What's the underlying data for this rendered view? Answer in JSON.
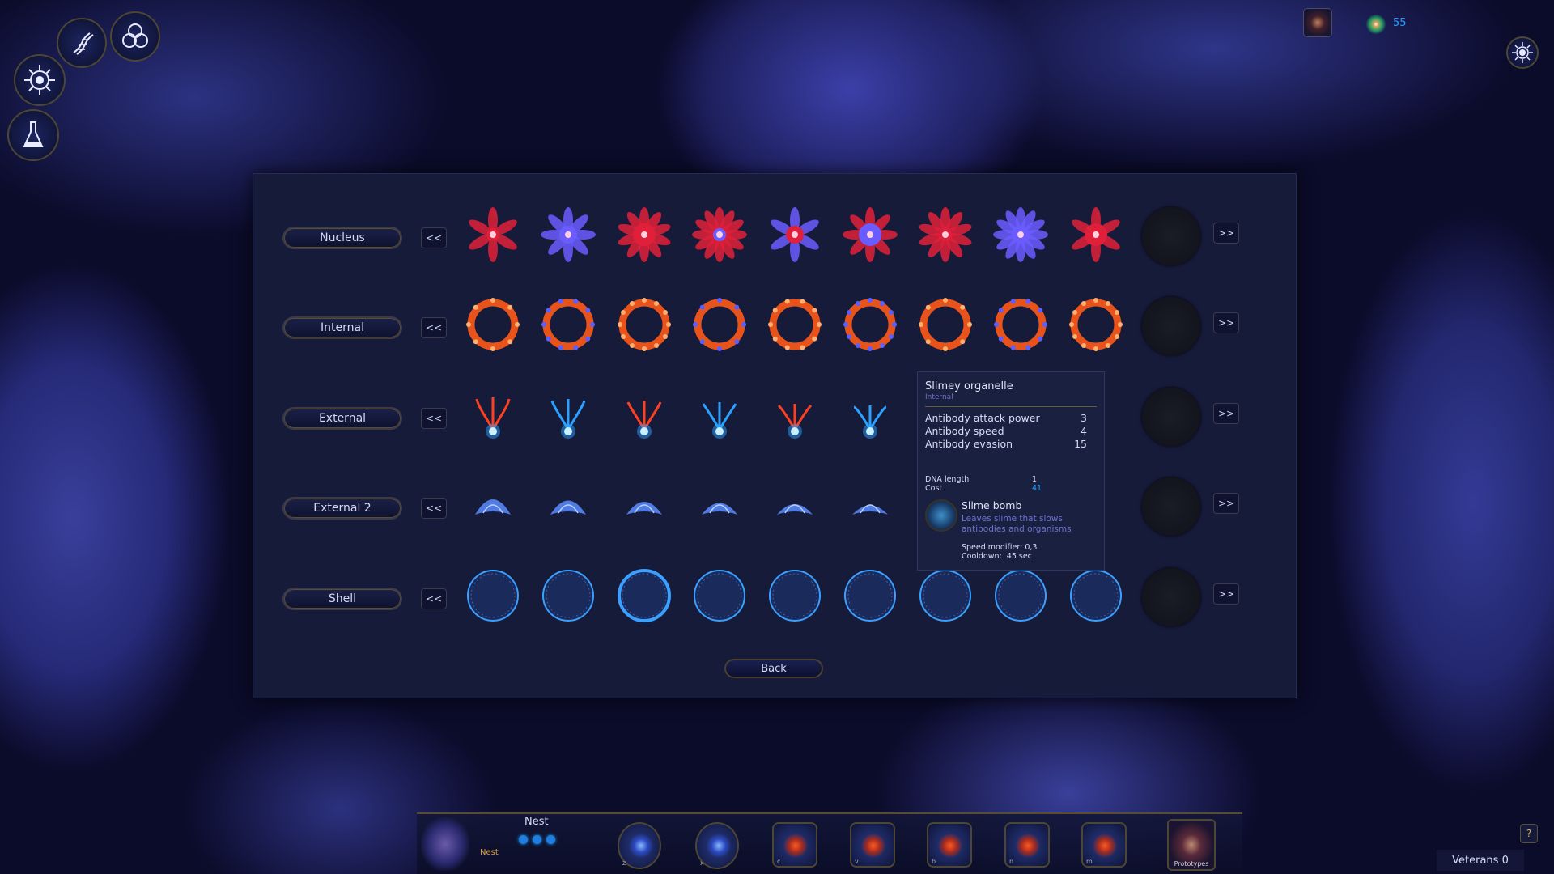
{
  "top_left_icons": [
    "dna-icon",
    "triple-circle-icon",
    "cell-gear-icon",
    "flask-icon"
  ],
  "resources": {
    "icon": "dna-orb-icon",
    "value": "55",
    "color": "#1fa0ff"
  },
  "settings_icon": "settings-icon",
  "rows": [
    {
      "label": "Nucleus",
      "prev": "<<",
      "next": ">>",
      "color": "#e0203a",
      "accent": "#6a5cff",
      "icons": [
        "nucleus-1",
        "nucleus-2",
        "nucleus-3",
        "nucleus-4",
        "nucleus-5",
        "nucleus-6",
        "nucleus-7",
        "nucleus-8",
        "nucleus-9"
      ]
    },
    {
      "label": "Internal",
      "prev": "<<",
      "next": ">>",
      "color": "#ff5a18",
      "accent": "#5a60ff",
      "icons": [
        "internal-1",
        "internal-2",
        "internal-3",
        "internal-4",
        "internal-5",
        "internal-6",
        "internal-7",
        "internal-8",
        "internal-9"
      ]
    },
    {
      "label": "External",
      "prev": "<<",
      "next": ">>",
      "color": "#2aa0ff",
      "accent": "#ff4020",
      "icons": [
        "external-1",
        "external-2",
        "external-3",
        "external-4",
        "external-5",
        "external-6"
      ]
    },
    {
      "label": "External 2",
      "prev": "<<",
      "next": ">>",
      "color": "#5a8cff",
      "accent": "#bcd0ff",
      "icons": [
        "external2-1",
        "external2-2",
        "external2-3",
        "external2-4",
        "external2-5",
        "external2-6"
      ]
    },
    {
      "label": "Shell",
      "prev": "<<",
      "next": ">>",
      "color": "#3aa0ff",
      "accent": "#20305a",
      "icons": [
        "shell-1",
        "shell-2",
        "shell-3",
        "shell-4",
        "shell-5",
        "shell-6",
        "shell-7",
        "shell-8",
        "shell-9"
      ]
    }
  ],
  "back_label": "Back",
  "tooltip": {
    "title": "Slimey organelle",
    "category": "Internal",
    "stats": [
      {
        "label": "Antibody attack power",
        "value": "3"
      },
      {
        "label": "Antibody speed",
        "value": "4"
      },
      {
        "label": "Antibody evasion",
        "value": "15"
      }
    ],
    "dna_length_label": "DNA length",
    "dna_length": "1",
    "cost_label": "Cost",
    "cost": "41",
    "cost_color": "#1fa0ff",
    "ability": {
      "name": "Slime bomb",
      "description": "Leaves slime that slows antibodies and organisms",
      "speed_label": "Speed modifier:",
      "speed": "0,3",
      "cooldown_label": "Cooldown:",
      "cooldown": "45 sec"
    }
  },
  "bottom": {
    "nest_title": "Nest",
    "nest_sub": "Nest",
    "nest_dots": 3,
    "keys": [
      {
        "key": "z",
        "icon": "antibody-icon"
      },
      {
        "key": "x",
        "icon": "probe-icon"
      },
      {
        "key": "c",
        "icon": "organism-nucleus-icon"
      },
      {
        "key": "v",
        "icon": "organism-internal-icon"
      },
      {
        "key": "b",
        "icon": "organism-shell-icon"
      },
      {
        "key": "n",
        "icon": "organism-external-icon"
      },
      {
        "key": "m",
        "icon": "organism-external2-icon"
      }
    ],
    "prototypes_label": "Prototypes",
    "veterans_label": "Veterans 0",
    "help_label": "?"
  }
}
